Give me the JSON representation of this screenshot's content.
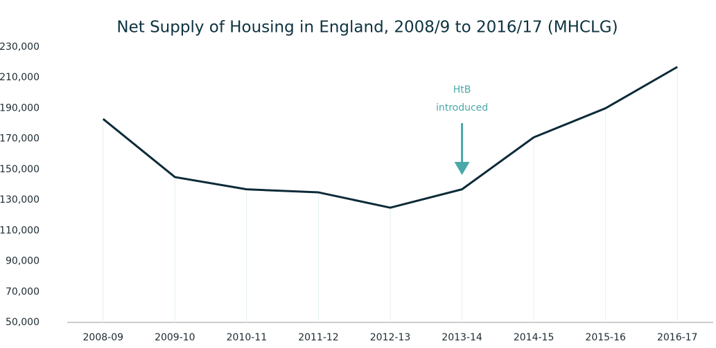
{
  "chart_data": {
    "type": "line",
    "title": "Net Supply of Housing in England, 2008/9 to 2016/17 (MHCLG)",
    "categories": [
      "2008-09",
      "2009-10",
      "2010-11",
      "2011-12",
      "2012-13",
      "2013-14",
      "2014-15",
      "2015-16",
      "2016-17"
    ],
    "values": [
      183000,
      145000,
      137000,
      135000,
      125000,
      137000,
      171000,
      190000,
      217000
    ],
    "color": "#0b2a38",
    "ylim": [
      50000,
      230000
    ],
    "yticks": [
      {
        "value": 50000,
        "label": "50,000"
      },
      {
        "value": 70000,
        "label": "70,000"
      },
      {
        "value": 90000,
        "label": "90,000"
      },
      {
        "value": 110000,
        "label": "110,000"
      },
      {
        "value": 130000,
        "label": "130,000"
      },
      {
        "value": 150000,
        "label": "150,000"
      },
      {
        "value": 170000,
        "label": "170,000"
      },
      {
        "value": 190000,
        "label": "190,000"
      },
      {
        "value": 210000,
        "label": "210,000"
      },
      {
        "value": 230000,
        "label": "230,000"
      }
    ],
    "annotation": {
      "text": [
        "HtB",
        "introduced"
      ],
      "x": "2013-14",
      "color": "#4aa8a8"
    }
  }
}
